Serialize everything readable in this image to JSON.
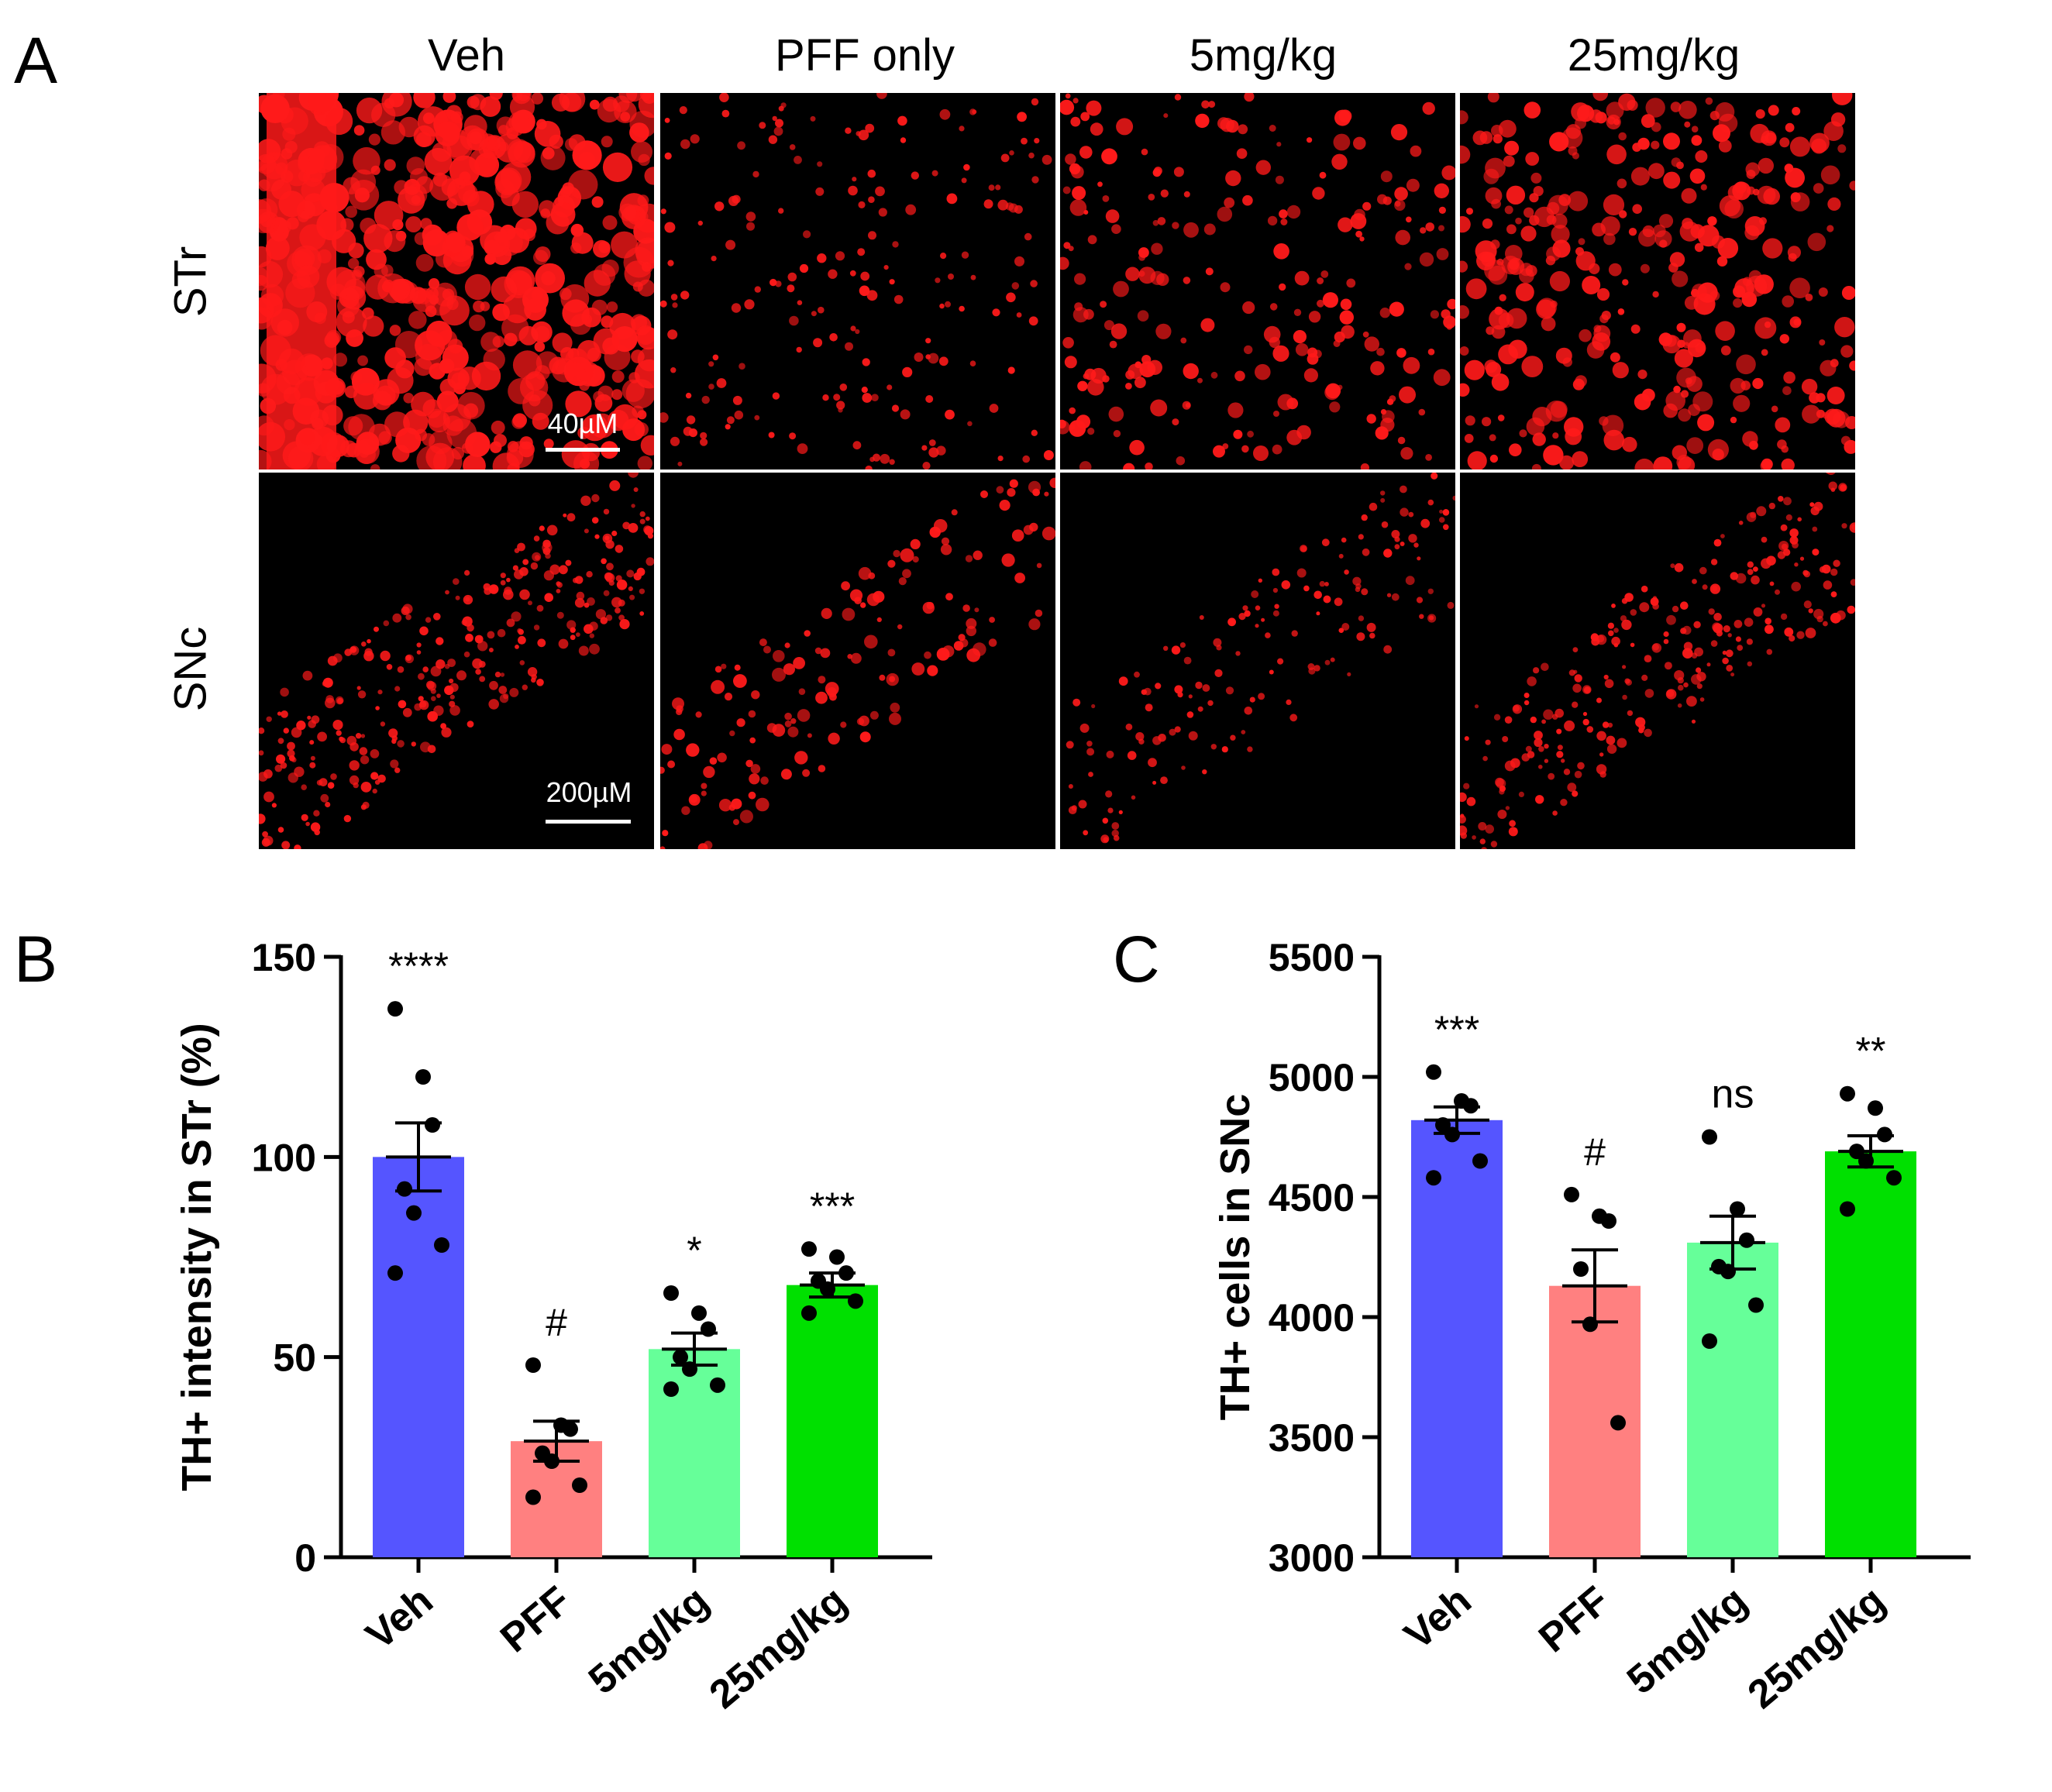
{
  "panel_a": {
    "letter": "A",
    "columns": [
      "Veh",
      "PFF only",
      "5mg/kg",
      "25mg/kg"
    ],
    "rows": [
      "STr",
      "SNc"
    ],
    "scale_bars": [
      "40µM",
      "200µM"
    ],
    "stain_color": "#ff1a1a"
  },
  "panel_b": {
    "letter": "B"
  },
  "panel_c": {
    "letter": "C"
  },
  "chart_data": [
    {
      "type": "bar",
      "panel": "B",
      "categories": [
        "Veh",
        "PFF",
        "5mg/kg",
        "25mg/kg"
      ],
      "ylabel": "TH+ intensity in STr (%)",
      "ylim": [
        0,
        150
      ],
      "yticks": [
        0,
        50,
        100,
        150
      ],
      "values": [
        100,
        29,
        52,
        68
      ],
      "sem": [
        8.5,
        5,
        4,
        3
      ],
      "points": [
        [
          137,
          120,
          108,
          92,
          86,
          78,
          71
        ],
        [
          48,
          33,
          32,
          26,
          24,
          18,
          15
        ],
        [
          66,
          61,
          57,
          50,
          47,
          43,
          42
        ],
        [
          77,
          75,
          71,
          69,
          67,
          64,
          61
        ]
      ],
      "annotations": [
        "****",
        "#",
        "*",
        "***"
      ],
      "colors": [
        "#5555ff",
        "#ff8080",
        "#66ff99",
        "#00e000"
      ]
    },
    {
      "type": "bar",
      "panel": "C",
      "categories": [
        "Veh",
        "PFF",
        "5mg/kg",
        "25mg/kg"
      ],
      "ylabel": "TH+ cells in SNc",
      "ylim": [
        3000,
        5500
      ],
      "yticks": [
        3000,
        3500,
        4000,
        4500,
        5000,
        5500
      ],
      "values": [
        4820,
        4130,
        4310,
        4690
      ],
      "sem": [
        55,
        150,
        110,
        65
      ],
      "points": [
        [
          5020,
          4900,
          4880,
          4800,
          4760,
          4650,
          4580
        ],
        [
          4510,
          4420,
          4400,
          4200,
          3970,
          3560
        ],
        [
          4750,
          4450,
          4320,
          4210,
          4190,
          4050,
          3900
        ],
        [
          4930,
          4870,
          4760,
          4690,
          4650,
          4580,
          4450
        ]
      ],
      "annotations": [
        "***",
        "#",
        "ns",
        "**"
      ],
      "colors": [
        "#5555ff",
        "#ff8080",
        "#66ff99",
        "#00e000"
      ]
    }
  ]
}
